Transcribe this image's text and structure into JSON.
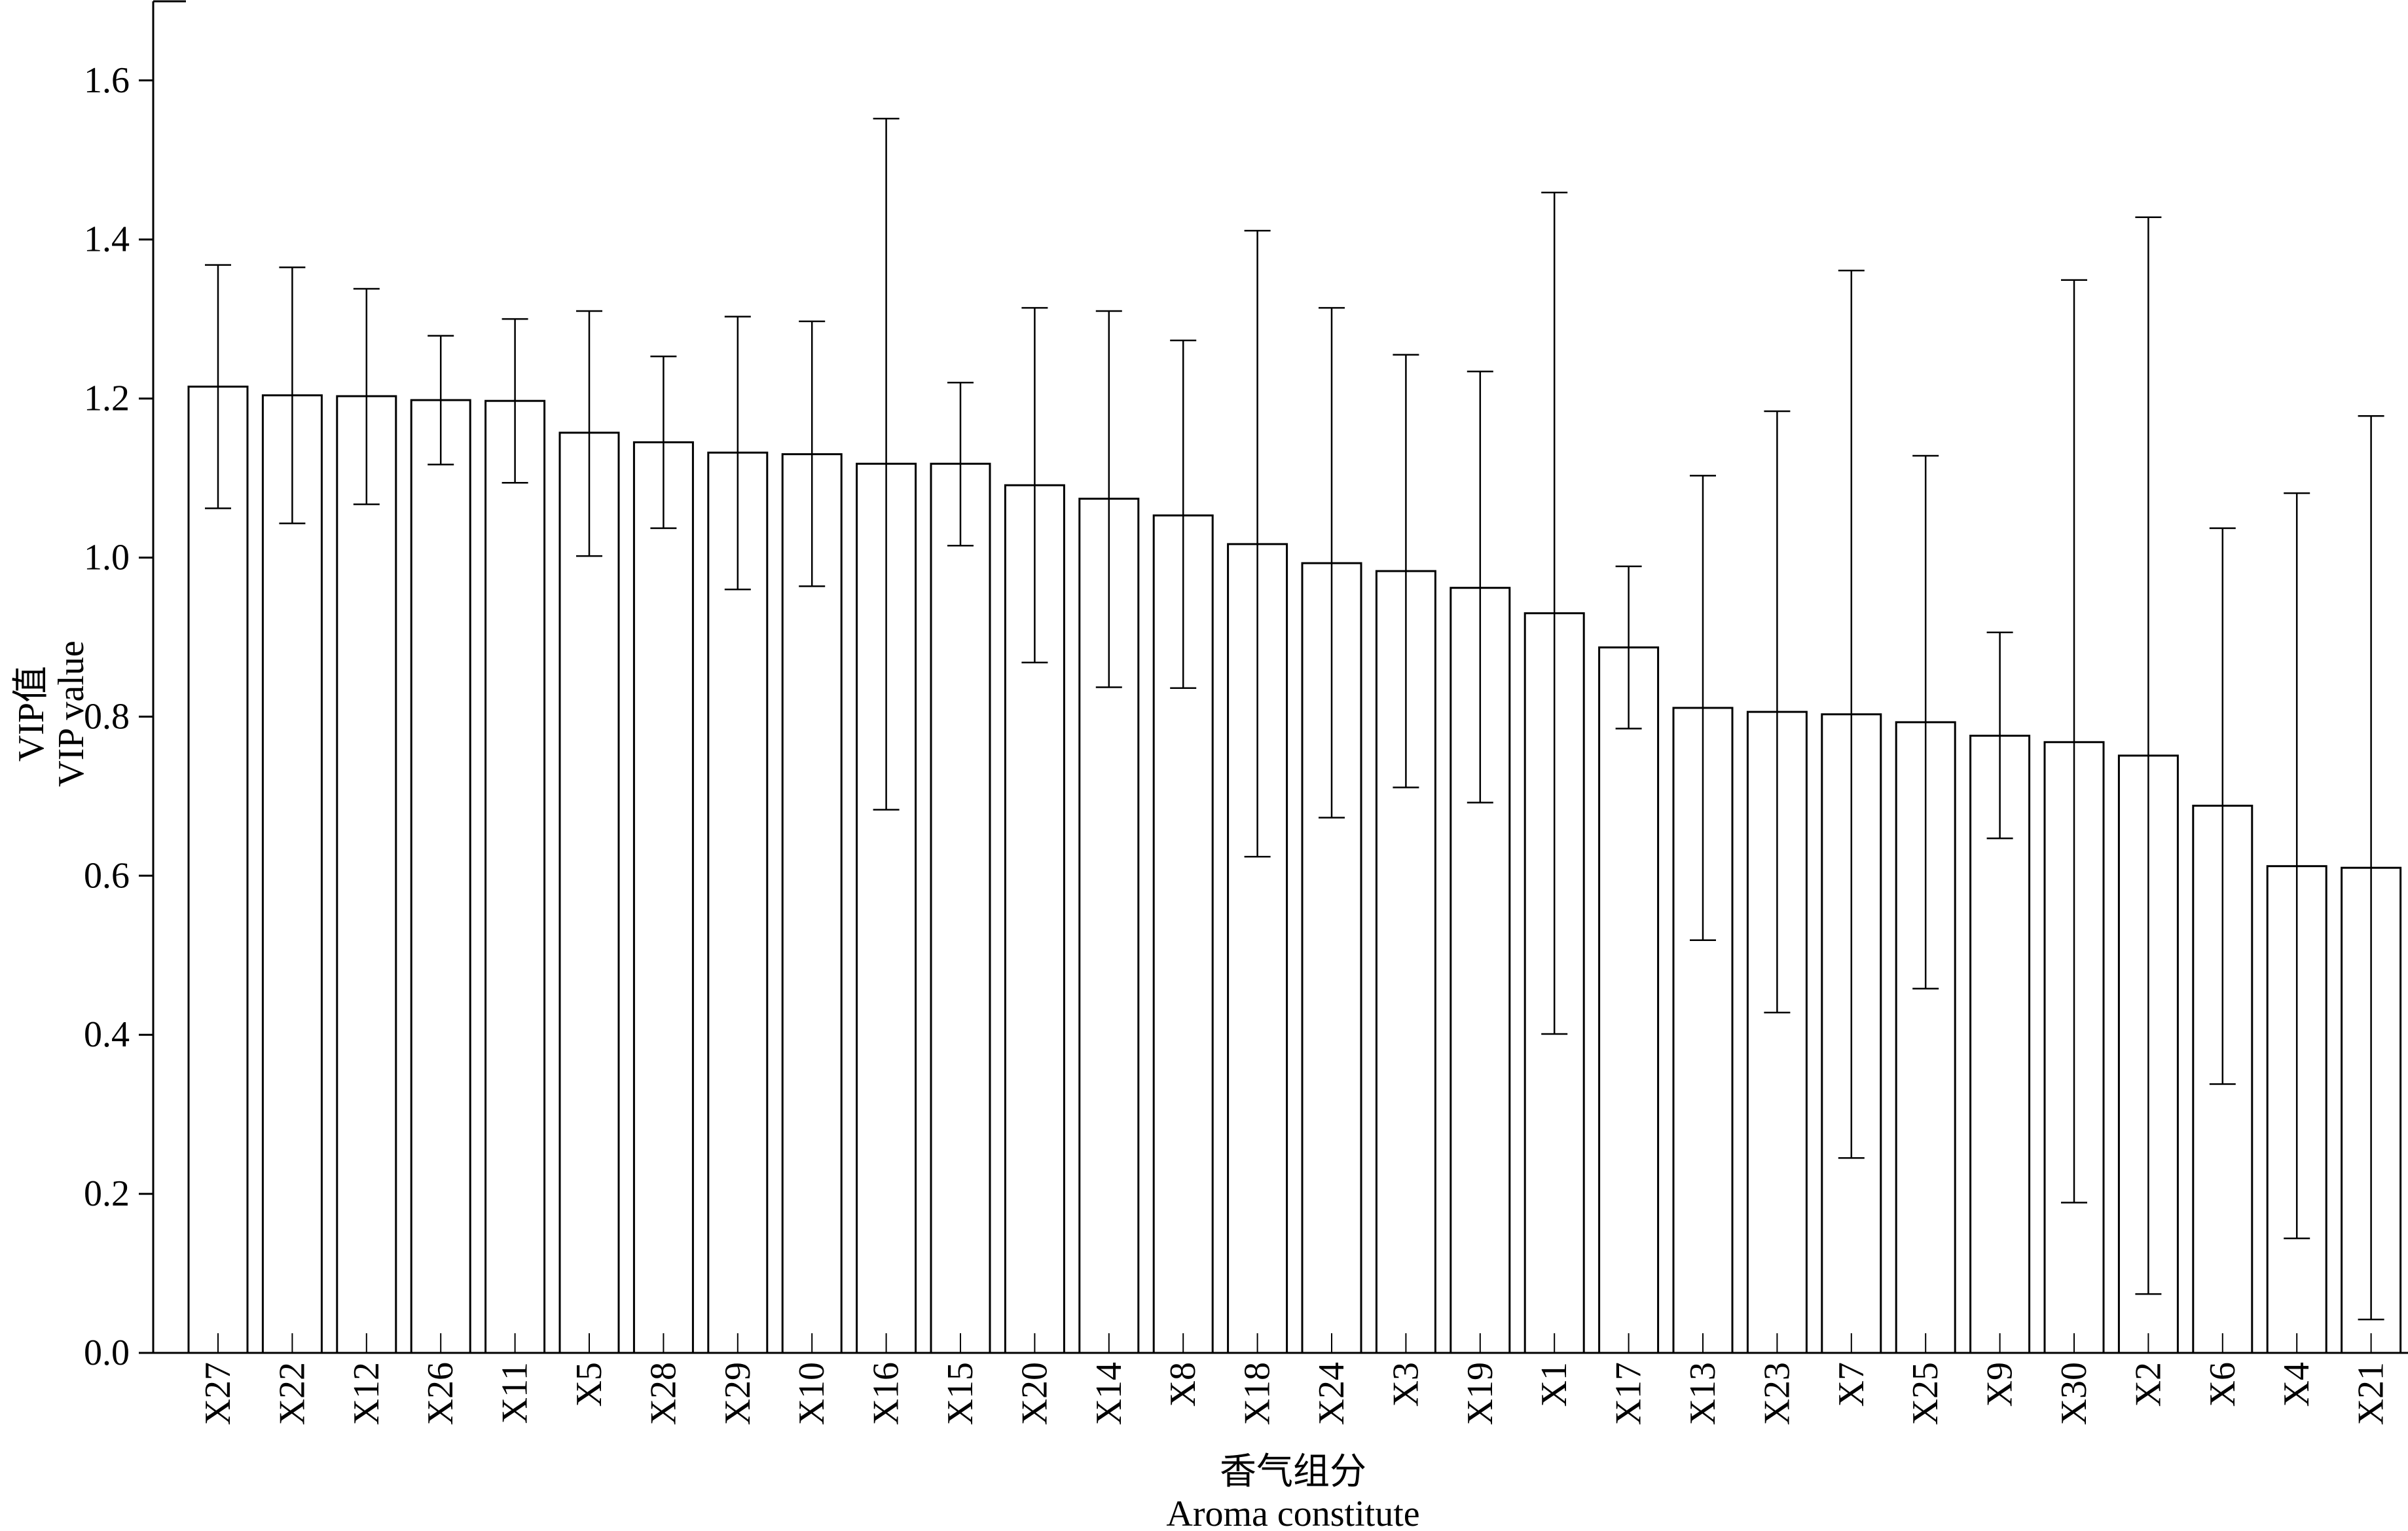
{
  "chart_data": {
    "type": "bar",
    "ylabel_cn": "VIP值",
    "ylabel_en": "VIP value",
    "xlabel_cn": "香气组分",
    "xlabel_en": "Aroma constitute",
    "ylim": [
      0.0,
      1.72
    ],
    "yticks": [
      "0.0",
      "0.2",
      "0.4",
      "0.6",
      "0.8",
      "1.0",
      "1.2",
      "1.4",
      "1.6"
    ],
    "grid": false,
    "legend": "none",
    "bar_fill": "#ffffff",
    "stroke_color": "#000000",
    "categories": [
      "X27",
      "X22",
      "X12",
      "X26",
      "X11",
      "X5",
      "X28",
      "X29",
      "X10",
      "X16",
      "X15",
      "X20",
      "X14",
      "X8",
      "X18",
      "X24",
      "X3",
      "X19",
      "X1",
      "X17",
      "X13",
      "X23",
      "X7",
      "X25",
      "X9",
      "X30",
      "X2",
      "X6",
      "X4",
      "X21"
    ],
    "values": [
      1.215,
      1.204,
      1.203,
      1.198,
      1.197,
      1.157,
      1.145,
      1.132,
      1.13,
      1.118,
      1.118,
      1.091,
      1.074,
      1.053,
      1.017,
      0.993,
      0.983,
      0.962,
      0.93,
      0.887,
      0.811,
      0.806,
      0.803,
      0.793,
      0.776,
      0.768,
      0.751,
      0.688,
      0.612,
      0.61
    ],
    "error_low": [
      1.062,
      1.043,
      1.067,
      1.117,
      1.094,
      1.002,
      1.037,
      0.96,
      0.964,
      0.683,
      1.015,
      0.868,
      0.837,
      0.836,
      0.624,
      0.673,
      0.711,
      0.692,
      0.401,
      0.785,
      0.519,
      0.428,
      0.245,
      0.458,
      0.647,
      0.189,
      0.074,
      0.338,
      0.144,
      0.042
    ],
    "error_high": [
      1.368,
      1.365,
      1.338,
      1.279,
      1.3,
      1.31,
      1.253,
      1.303,
      1.297,
      1.552,
      1.22,
      1.314,
      1.31,
      1.273,
      1.411,
      1.314,
      1.255,
      1.234,
      1.459,
      0.989,
      1.103,
      1.184,
      1.361,
      1.128,
      0.906,
      1.349,
      1.428,
      1.037,
      1.081,
      1.178
    ]
  }
}
